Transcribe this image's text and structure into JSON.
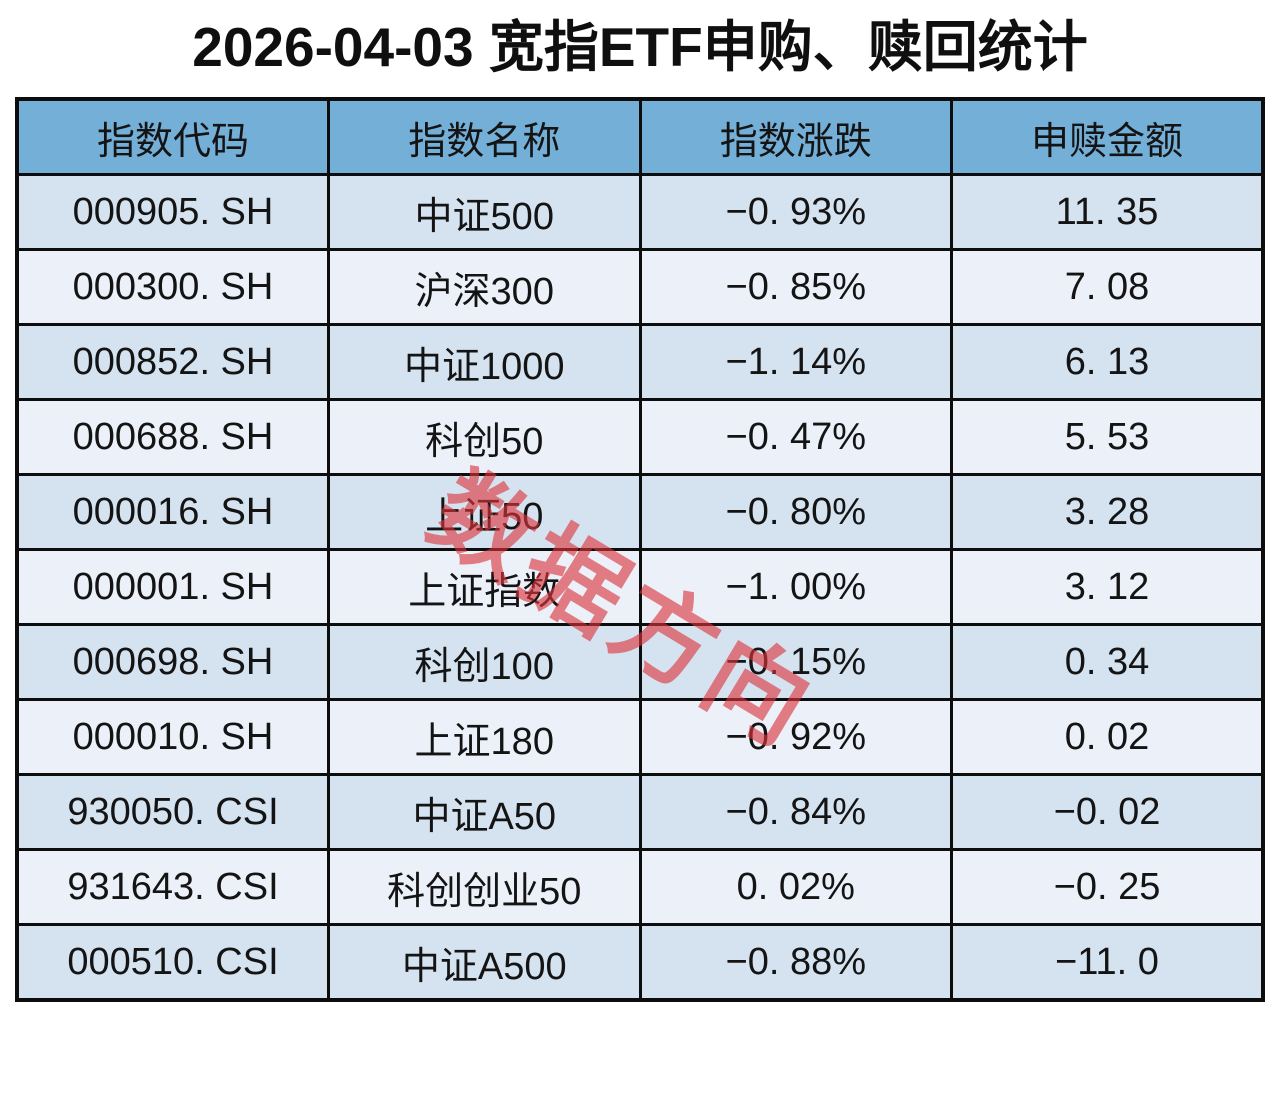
{
  "title": "2026-04-03 宽指ETF申购、赎回统计",
  "watermark": "数据方向",
  "colors": {
    "header_background": "#74AFD8",
    "row_odd_background": "#D5E2F0",
    "row_even_background": "#EBF0F9",
    "border": "#0d0d0d",
    "watermark_red": "#DB343A",
    "text": "#141414"
  },
  "table": {
    "headers": [
      "指数代码",
      "指数名称",
      "指数涨跌",
      "申赎金额"
    ],
    "rows": [
      {
        "code": "000905. SH",
        "name": "中证500",
        "change": "−0. 93%",
        "amount": "11. 35"
      },
      {
        "code": "000300. SH",
        "name": "沪深300",
        "change": "−0. 85%",
        "amount": "7. 08"
      },
      {
        "code": "000852. SH",
        "name": "中证1000",
        "change": "−1. 14%",
        "amount": "6. 13"
      },
      {
        "code": "000688. SH",
        "name": "科创50",
        "change": "−0. 47%",
        "amount": "5. 53"
      },
      {
        "code": "000016. SH",
        "name": "上证50",
        "change": "−0. 80%",
        "amount": "3. 28"
      },
      {
        "code": "000001. SH",
        "name": "上证指数",
        "change": "−1. 00%",
        "amount": "3. 12"
      },
      {
        "code": "000698. SH",
        "name": "科创100",
        "change": "−0. 15%",
        "amount": "0. 34"
      },
      {
        "code": "000010. SH",
        "name": "上证180",
        "change": "−0. 92%",
        "amount": "0. 02"
      },
      {
        "code": "930050. CSI",
        "name": "中证A50",
        "change": "−0. 84%",
        "amount": "−0. 02"
      },
      {
        "code": "931643. CSI",
        "name": "科创创业50",
        "change": "0. 02%",
        "amount": "−0. 25"
      },
      {
        "code": "000510. CSI",
        "name": "中证A500",
        "change": "−0. 88%",
        "amount": "−11. 0"
      }
    ]
  },
  "chart_data": {
    "type": "table",
    "title": "2026-04-03 宽指ETF申购、赎回统计",
    "columns": [
      "指数代码",
      "指数名称",
      "指数涨跌",
      "申赎金额"
    ],
    "rows": [
      [
        "000905.SH",
        "中证500",
        "-0.93%",
        11.35
      ],
      [
        "000300.SH",
        "沪深300",
        "-0.85%",
        7.08
      ],
      [
        "000852.SH",
        "中证1000",
        "-1.14%",
        6.13
      ],
      [
        "000688.SH",
        "科创50",
        "-0.47%",
        5.53
      ],
      [
        "000016.SH",
        "上证50",
        "-0.80%",
        3.28
      ],
      [
        "000001.SH",
        "上证指数",
        "-1.00%",
        3.12
      ],
      [
        "000698.SH",
        "科创100",
        "-0.15%",
        0.34
      ],
      [
        "000010.SH",
        "上证180",
        "-0.92%",
        0.02
      ],
      [
        "930050.CSI",
        "中证A50",
        "-0.84%",
        -0.02
      ],
      [
        "931643.CSI",
        "科创创业50",
        "0.02%",
        -0.25
      ],
      [
        "000510.CSI",
        "中证A500",
        "-0.88%",
        -11.0
      ]
    ]
  }
}
